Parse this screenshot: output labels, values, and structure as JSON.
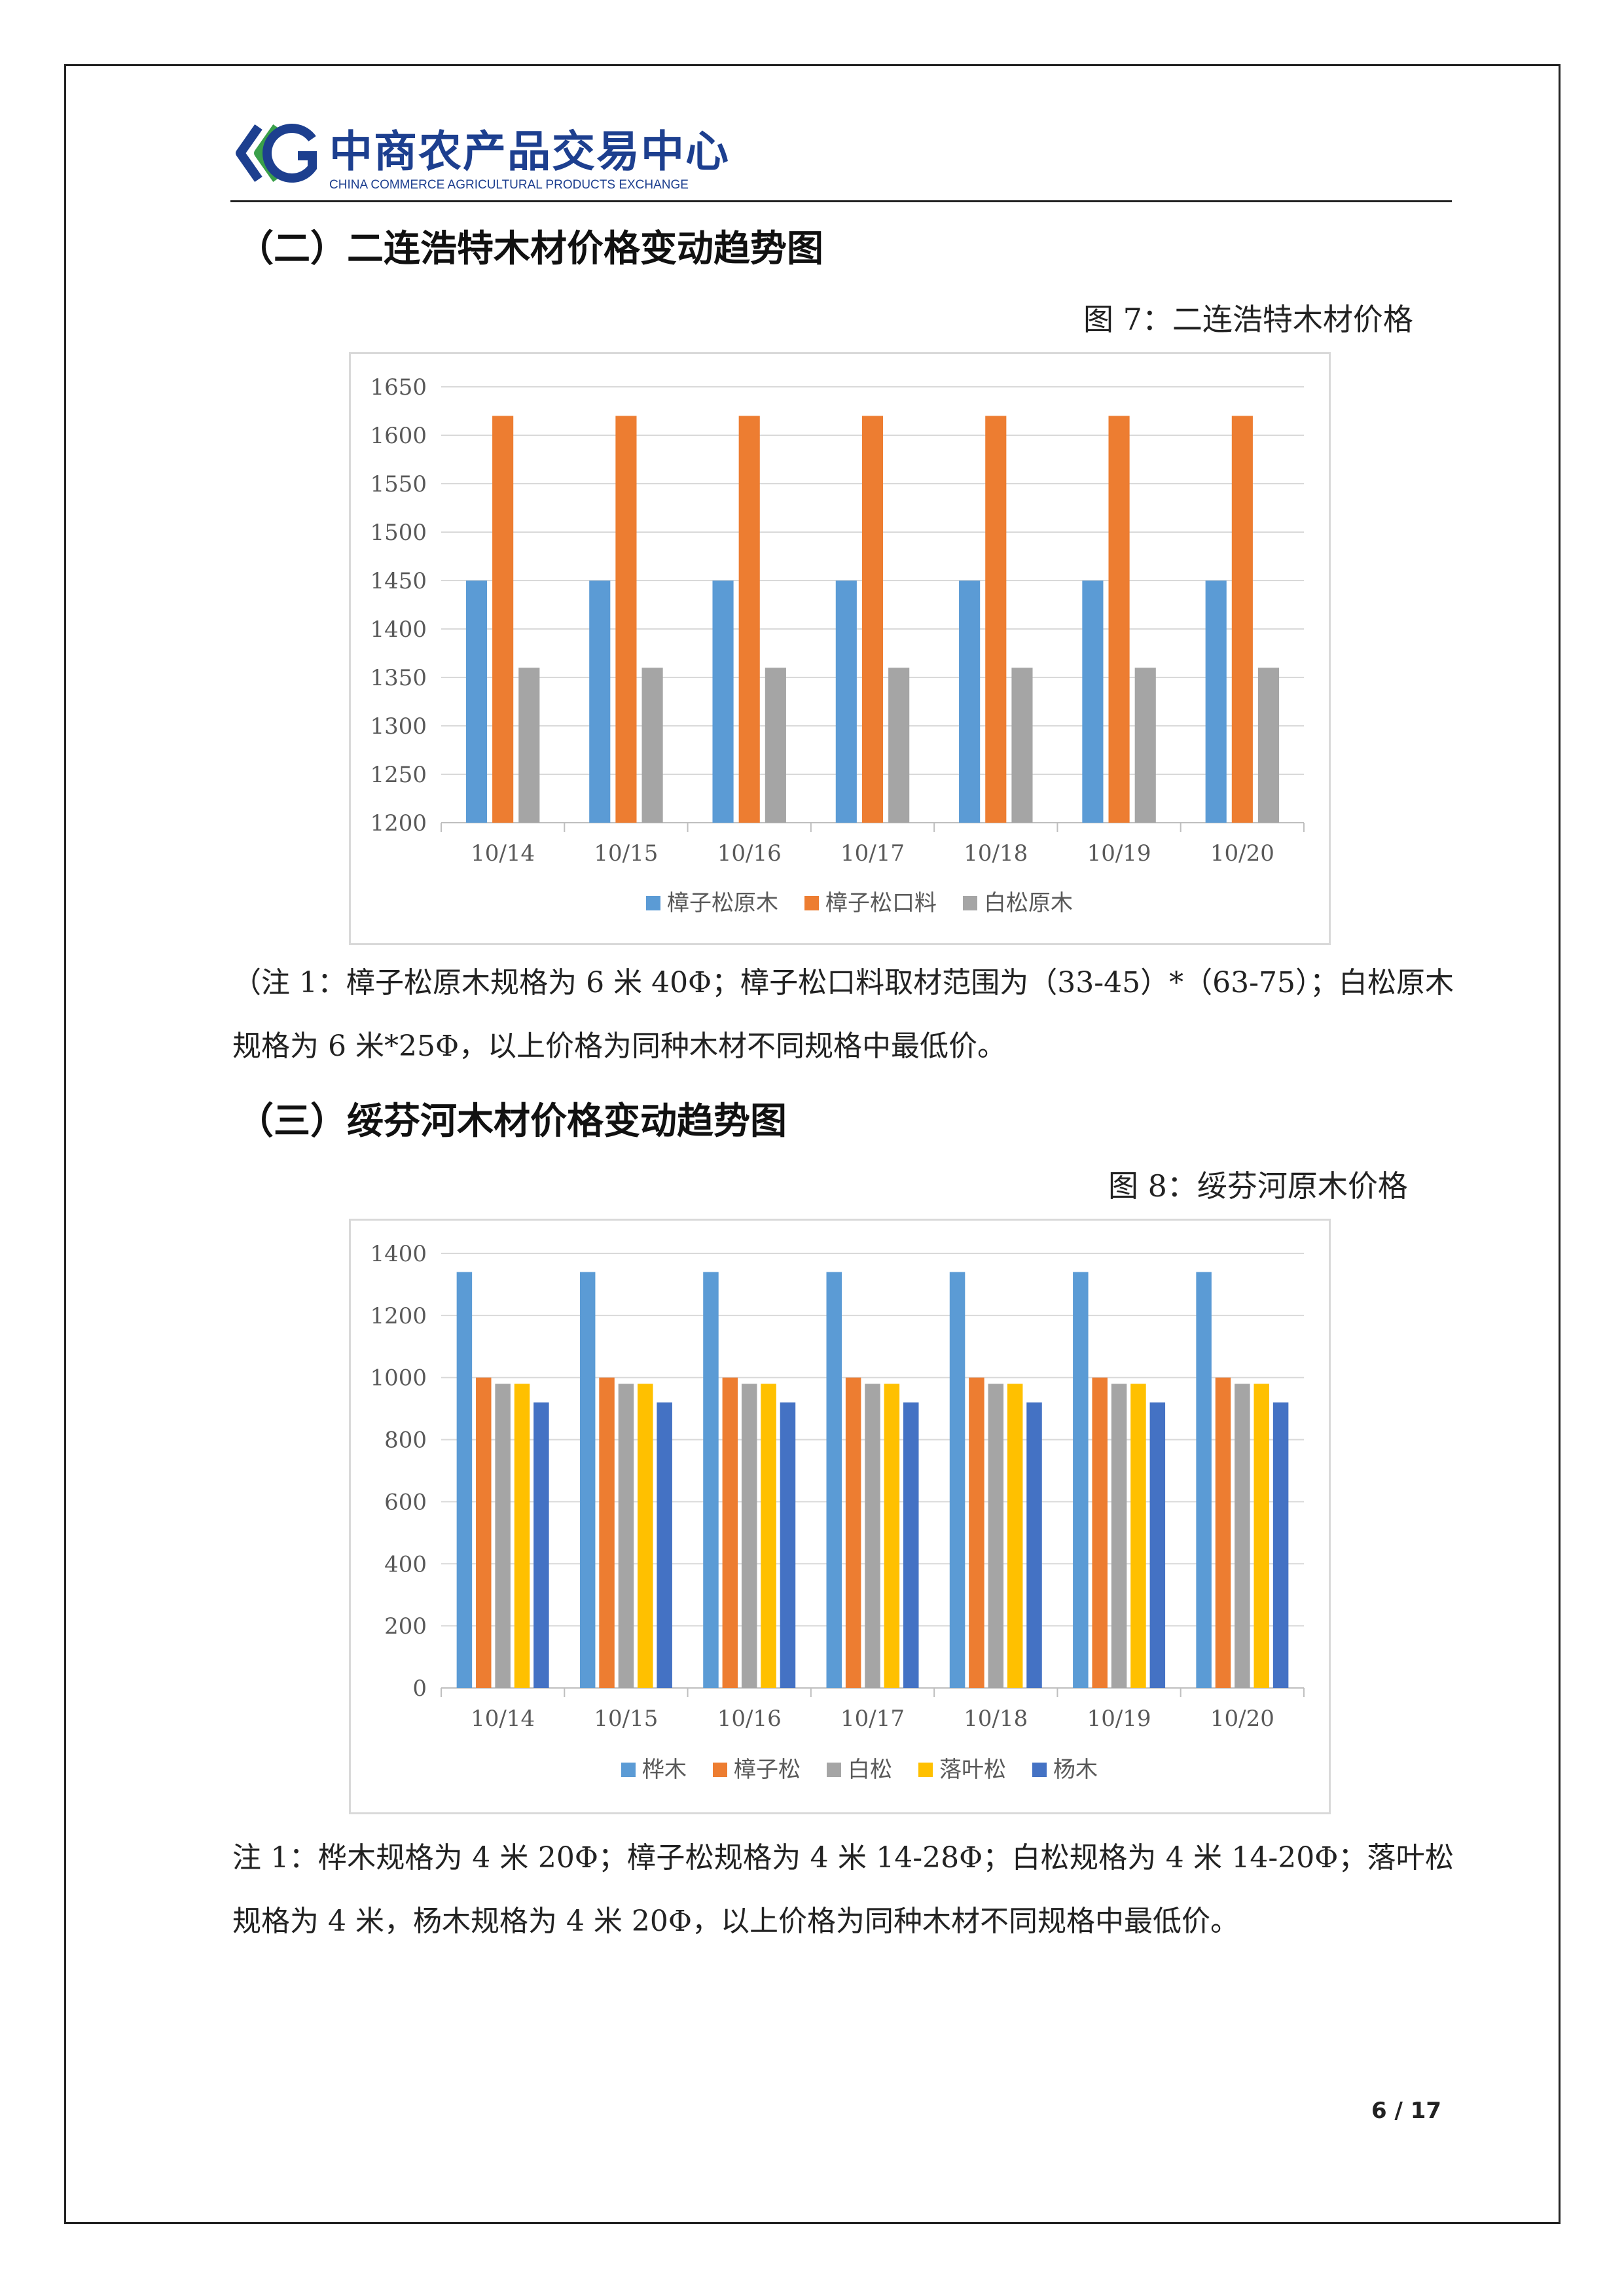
{
  "header": {
    "logo_cn": "中商农产品交易中心",
    "logo_en": "CHINA COMMERCE AGRICULTURAL PRODUCTS EXCHANGE",
    "colors": {
      "logo_blue": "#1d3f8f",
      "logo_green": "#3aa04a"
    }
  },
  "section2": {
    "title": "（二）二连浩特木材价格变动趋势图",
    "caption": "图 7：二连浩特木材价格",
    "note": "（注 1：樟子松原木规格为 6 米 40Φ；樟子松口料取材范围为（33-45）*（63-75）；白松原木规格为 6 米*25Φ，以上价格为同种木材不同规格中最低价。"
  },
  "section3": {
    "title": "（三）绥芬河木材价格变动趋势图",
    "caption": "图 8：绥芬河原木价格",
    "note": "注 1：桦木规格为 4 米 20Φ；樟子松规格为 4 米 14-28Φ；白松规格为 4 米 14-20Φ；落叶松规格为 4 米，杨木规格为 4 米 20Φ，以上价格为同种木材不同规格中最低价。"
  },
  "footer": {
    "page": "6  /  17"
  },
  "chart_data": [
    {
      "type": "bar",
      "title": "",
      "categories": [
        "10/14",
        "10/15",
        "10/16",
        "10/17",
        "10/18",
        "10/19",
        "10/20"
      ],
      "series": [
        {
          "name": "樟子松原木",
          "color": "#5b9bd5",
          "values": [
            1450,
            1450,
            1450,
            1450,
            1450,
            1450,
            1450
          ]
        },
        {
          "name": "樟子松口料",
          "color": "#ed7d31",
          "values": [
            1620,
            1620,
            1620,
            1620,
            1620,
            1620,
            1620
          ]
        },
        {
          "name": "白松原木",
          "color": "#a5a5a5",
          "values": [
            1360,
            1360,
            1360,
            1360,
            1360,
            1360,
            1360
          ]
        }
      ],
      "ylim": [
        1200,
        1650
      ],
      "yticks": [
        "1650",
        "1600",
        "1550",
        "1500",
        "1450",
        "1400",
        "1350",
        "1300",
        "1250",
        "1200"
      ],
      "grid": true,
      "legend": "bottom"
    },
    {
      "type": "bar",
      "title": "",
      "categories": [
        "10/14",
        "10/15",
        "10/16",
        "10/17",
        "10/18",
        "10/19",
        "10/20"
      ],
      "series": [
        {
          "name": "桦木",
          "color": "#5b9bd5",
          "values": [
            1340,
            1340,
            1340,
            1340,
            1340,
            1340,
            1340
          ]
        },
        {
          "name": "樟子松",
          "color": "#ed7d31",
          "values": [
            1000,
            1000,
            1000,
            1000,
            1000,
            1000,
            1000
          ]
        },
        {
          "name": "白松",
          "color": "#a5a5a5",
          "values": [
            980,
            980,
            980,
            980,
            980,
            980,
            980
          ]
        },
        {
          "name": "落叶松",
          "color": "#ffc000",
          "values": [
            980,
            980,
            980,
            980,
            980,
            980,
            980
          ]
        },
        {
          "name": "杨木",
          "color": "#4472c4",
          "values": [
            920,
            920,
            920,
            920,
            920,
            920,
            920
          ]
        }
      ],
      "ylim": [
        0,
        1400
      ],
      "yticks": [
        "1400",
        "1200",
        "1000",
        "800",
        "600",
        "400",
        "200",
        "0"
      ],
      "grid": true,
      "legend": "bottom"
    }
  ]
}
